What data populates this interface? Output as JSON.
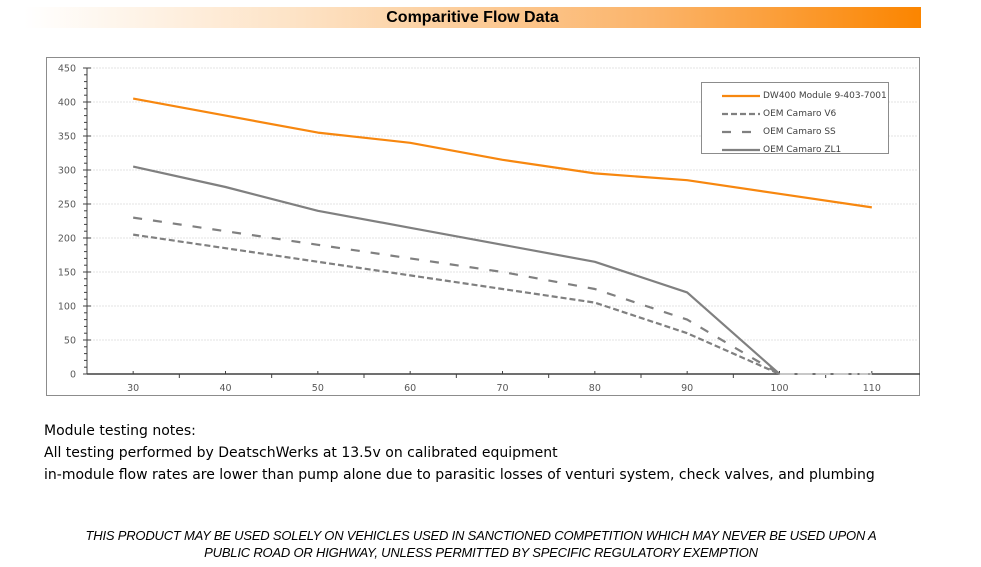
{
  "banner": {
    "title": "Comparitive Flow Data",
    "gradient_end_color": "#fb8500"
  },
  "chart_data": {
    "type": "line",
    "title": "Comparitive Flow Data",
    "xlabel": "",
    "ylabel": "",
    "x": [
      30,
      40,
      50,
      60,
      70,
      80,
      90,
      100,
      110
    ],
    "xlim": [
      25,
      115
    ],
    "ylim": [
      0,
      450
    ],
    "x_ticks": [
      30,
      40,
      50,
      60,
      70,
      80,
      90,
      100,
      110
    ],
    "y_ticks": [
      0,
      50,
      100,
      150,
      200,
      250,
      300,
      350,
      400,
      450
    ],
    "grid": "horizontal",
    "legend_position": "top-right",
    "series": [
      {
        "name": "DW400 Module 9-403-7001",
        "color": "#f7870f",
        "style": "solid",
        "values": [
          405,
          380,
          355,
          340,
          315,
          295,
          285,
          265,
          245
        ]
      },
      {
        "name": "OEM Camaro V6",
        "color": "#808080",
        "style": "short-dash",
        "values": [
          205,
          185,
          165,
          145,
          125,
          105,
          60,
          0,
          0
        ]
      },
      {
        "name": "OEM Camaro SS",
        "color": "#808080",
        "style": "long-dash",
        "values": [
          230,
          210,
          190,
          170,
          150,
          125,
          80,
          0,
          0
        ]
      },
      {
        "name": "OEM Camaro ZL1",
        "color": "#808080",
        "style": "solid",
        "values": [
          305,
          275,
          240,
          215,
          190,
          165,
          120,
          0,
          null
        ]
      }
    ]
  },
  "notes": {
    "heading": "Module testing notes:",
    "line1": "All testing performed by DeatschWerks at 13.5v on calibrated equipment",
    "line2": "in-module flow rates are lower than pump alone due to parasitic losses of venturi system, check valves, and plumbing"
  },
  "disclaimer": {
    "line1": "THIS PRODUCT MAY BE USED SOLELY ON VEHICLES USED IN SANCTIONED COMPETITION WHICH MAY NEVER BE USED UPON A",
    "line2": "PUBLIC ROAD OR HIGHWAY, UNLESS PERMITTED BY SPECIFIC REGULATORY EXEMPTION"
  }
}
